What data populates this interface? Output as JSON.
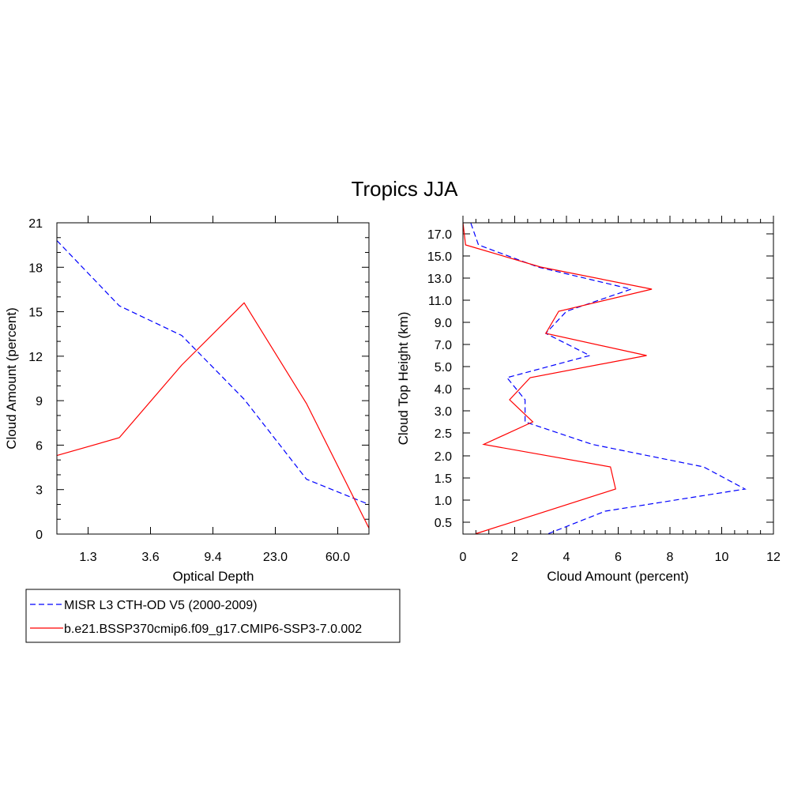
{
  "title": "Tropics JJA",
  "colors": {
    "obs": "#0000ff",
    "model": "#ff0000",
    "axis": "#000000"
  },
  "legend": {
    "entries": [
      {
        "label": "MISR L3 CTH-OD V5 (2000-2009)",
        "color": "#0000ff",
        "style": "dashed"
      },
      {
        "label": "b.e21.BSSP370cmip6.f09_g17.CMIP6-SSP3-7.0.002",
        "color": "#ff0000",
        "style": "solid"
      }
    ]
  },
  "chart_data": [
    {
      "type": "line",
      "xlabel": "Optical Depth",
      "ylabel": "Cloud Amount (percent)",
      "x_tick_labels": [
        "1.3",
        "3.6",
        "9.4",
        "23.0",
        "60.0"
      ],
      "y_ticks": [
        0,
        3,
        6,
        9,
        12,
        15,
        18,
        21
      ],
      "ylim": [
        0,
        21
      ],
      "series": [
        {
          "name": "MISR L3 CTH-OD V5 (2000-2009)",
          "color": "#0000ff",
          "dash": true,
          "x": [
            0,
            1,
            2,
            3,
            4,
            5
          ],
          "y": [
            19.8,
            15.4,
            13.4,
            9.1,
            3.7,
            2.0
          ]
        },
        {
          "name": "b.e21.BSSP370cmip6.f09_g17.CMIP6-SSP3-7.0.002",
          "color": "#ff0000",
          "dash": false,
          "x": [
            0,
            1,
            2,
            3,
            4,
            5
          ],
          "y": [
            5.3,
            6.5,
            11.4,
            15.6,
            8.8,
            0.4
          ]
        }
      ]
    },
    {
      "type": "line",
      "xlabel": "Cloud Amount (percent)",
      "ylabel": "Cloud Top Height (km)",
      "xlim": [
        0,
        12
      ],
      "x_ticks": [
        0,
        2,
        4,
        6,
        8,
        10,
        12
      ],
      "y_tick_labels": [
        "0.5",
        "1.0",
        "1.5",
        "2.0",
        "2.5",
        "3.0",
        "4.0",
        "5.0",
        "7.0",
        "9.0",
        "11.0",
        "13.0",
        "15.0",
        "17.0"
      ],
      "series": [
        {
          "name": "MISR L3 CTH-OD V5 (2000-2009)",
          "color": "#0000ff",
          "dash": true,
          "x": [
            3.3,
            5.5,
            10.9,
            9.3,
            5.0,
            2.4,
            2.4,
            1.7,
            4.9,
            3.2,
            4.0,
            6.5,
            2.9,
            0.6,
            0.3
          ],
          "y": [
            0.25,
            0.75,
            1.25,
            1.75,
            2.25,
            2.75,
            3.5,
            4.5,
            6.0,
            8.0,
            10.0,
            12.0,
            14.0,
            16.0,
            18.0
          ]
        },
        {
          "name": "b.e21.BSSP370cmip6.f09_g17.CMIP6-SSP3-7.0.002",
          "color": "#ff0000",
          "dash": false,
          "x": [
            0.5,
            5.9,
            5.7,
            0.8,
            2.7,
            1.8,
            2.6,
            7.1,
            3.2,
            3.7,
            7.3,
            3.0,
            0.1,
            0.0
          ],
          "y": [
            0.25,
            1.25,
            1.75,
            2.25,
            2.75,
            3.5,
            4.5,
            6.0,
            8.0,
            10.0,
            12.0,
            14.0,
            16.0,
            18.0
          ]
        }
      ]
    }
  ]
}
